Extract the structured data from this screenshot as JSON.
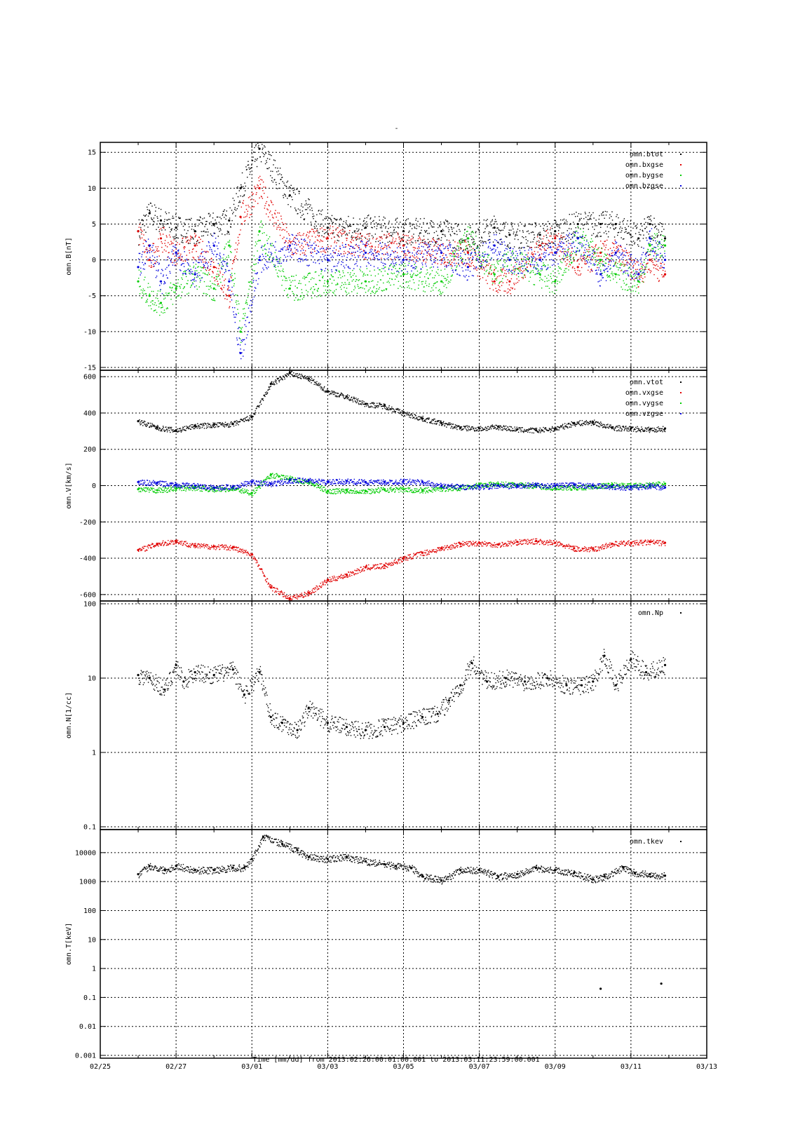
{
  "title": "-",
  "x_axis": {
    "ticks": [
      "02/25",
      "02/27",
      "03/01",
      "03/03",
      "03/05",
      "03/07",
      "03/09",
      "03/11",
      "03/13"
    ],
    "label": "Time [mm/dd]  from 2013:02:26:00:01:00.001  to  2013:03:11:23:59:00.001",
    "start_day": 0,
    "end_day": 16
  },
  "chart_data": [
    {
      "type": "scatter",
      "ylabel": "omn.B[nT]",
      "ylim": [
        -15,
        16
      ],
      "yscale": "linear",
      "yticks": [
        15,
        10,
        5,
        0,
        -5,
        -10,
        -15
      ],
      "grid": true,
      "legend_position": "top-right",
      "series": [
        {
          "name": "omn.btot",
          "color": "#000000",
          "x": [
            1.0,
            1.3,
            1.6,
            2.0,
            2.5,
            3.0,
            3.4,
            3.7,
            4.2,
            5.0,
            6.0,
            7.0,
            8.0,
            9.0,
            9.7,
            10.4,
            10.8,
            11.6,
            12.0,
            12.6,
            13.2,
            13.6,
            14.2,
            14.5,
            14.9
          ],
          "values": [
            4,
            6.5,
            5.5,
            4.5,
            4,
            5,
            5.5,
            10,
            15.5,
            9,
            4.5,
            4.5,
            4,
            4,
            3,
            4.5,
            3.5,
            3.5,
            4,
            5,
            5,
            5,
            3,
            5,
            3
          ]
        },
        {
          "name": "omn.bxgse",
          "color": "#e00000",
          "x": [
            1.0,
            1.3,
            1.6,
            2.0,
            2.5,
            3.0,
            3.4,
            3.7,
            4.2,
            5.0,
            6.0,
            7.0,
            8.0,
            9.0,
            9.7,
            10.4,
            10.8,
            11.6,
            12.0,
            12.6,
            13.2,
            13.6,
            14.2,
            14.5,
            14.9
          ],
          "values": [
            4,
            0,
            3,
            1,
            2,
            -1,
            -5,
            6,
            10,
            2,
            3,
            2,
            2,
            1,
            1,
            -3,
            -3,
            2,
            3,
            -1,
            1,
            1,
            -2,
            0,
            -2
          ]
        },
        {
          "name": "omn.bygse",
          "color": "#00cc00",
          "x": [
            1.0,
            1.3,
            1.6,
            2.0,
            2.5,
            3.0,
            3.4,
            3.7,
            4.2,
            5.0,
            6.0,
            7.0,
            8.0,
            9.0,
            9.7,
            10.4,
            10.8,
            11.6,
            12.0,
            12.6,
            13.2,
            13.6,
            14.2,
            14.5,
            14.9
          ],
          "values": [
            -3,
            -5,
            -6,
            -4,
            -2,
            -4,
            2,
            -10,
            4,
            -4,
            -3,
            -3,
            -2,
            -3,
            3,
            -2,
            0,
            -2,
            -3,
            3,
            0,
            -2,
            -3,
            2,
            2
          ]
        },
        {
          "name": "omn.bzgse",
          "color": "#0000dd",
          "x": [
            1.0,
            1.3,
            1.6,
            2.0,
            2.5,
            3.0,
            3.4,
            3.7,
            4.2,
            5.0,
            6.0,
            7.0,
            8.0,
            9.0,
            9.7,
            10.4,
            10.8,
            11.6,
            12.0,
            12.6,
            13.2,
            13.6,
            14.2,
            14.5,
            14.9
          ],
          "values": [
            -1,
            2,
            -3,
            1,
            -2,
            2,
            -3,
            -13,
            0,
            2,
            0,
            1,
            0,
            1,
            -1,
            2,
            0,
            0,
            1,
            3,
            -2,
            1,
            -2,
            3,
            0
          ]
        }
      ]
    },
    {
      "type": "scatter",
      "ylabel": "omn.V[km/s]",
      "ylim": [
        -620,
        620
      ],
      "yscale": "linear",
      "yticks": [
        600,
        400,
        200,
        0,
        -200,
        -400,
        -600
      ],
      "grid": true,
      "legend_position": "top-right",
      "series": [
        {
          "name": "omn.vtot",
          "color": "#000000",
          "x": [
            1.0,
            1.5,
            2.0,
            2.5,
            3.0,
            3.5,
            4.0,
            4.5,
            5.0,
            5.5,
            6.0,
            6.5,
            7.0,
            7.5,
            8.0,
            8.5,
            9.0,
            9.5,
            10.0,
            10.5,
            11.0,
            11.5,
            12.0,
            12.5,
            13.0,
            13.5,
            14.0,
            14.5,
            14.9
          ],
          "values": [
            355,
            320,
            305,
            330,
            335,
            340,
            380,
            560,
            620,
            590,
            520,
            490,
            450,
            440,
            400,
            370,
            345,
            320,
            315,
            325,
            310,
            305,
            315,
            345,
            350,
            320,
            315,
            310,
            315
          ]
        },
        {
          "name": "omn.vxgse",
          "color": "#e00000",
          "x": [
            1.0,
            1.5,
            2.0,
            2.5,
            3.0,
            3.5,
            4.0,
            4.5,
            5.0,
            5.5,
            6.0,
            6.5,
            7.0,
            7.5,
            8.0,
            8.5,
            9.0,
            9.5,
            10.0,
            10.5,
            11.0,
            11.5,
            12.0,
            12.5,
            13.0,
            13.5,
            14.0,
            14.5,
            14.9
          ],
          "values": [
            -355,
            -320,
            -305,
            -330,
            -335,
            -340,
            -380,
            -560,
            -620,
            -590,
            -520,
            -490,
            -450,
            -440,
            -400,
            -370,
            -345,
            -320,
            -315,
            -325,
            -310,
            -305,
            -315,
            -345,
            -350,
            -320,
            -315,
            -310,
            -315
          ]
        },
        {
          "name": "omn.vygse",
          "color": "#00cc00",
          "x": [
            1.0,
            1.5,
            2.0,
            2.5,
            3.0,
            3.5,
            4.0,
            4.5,
            5.0,
            5.5,
            6.0,
            6.5,
            7.0,
            7.5,
            8.0,
            8.5,
            9.0,
            9.5,
            10.0,
            10.5,
            11.0,
            11.5,
            12.0,
            12.5,
            13.0,
            13.5,
            14.0,
            14.5,
            14.9
          ],
          "values": [
            -20,
            -25,
            -15,
            -10,
            -20,
            -15,
            -40,
            60,
            40,
            20,
            -30,
            -25,
            -30,
            -20,
            -20,
            -25,
            -15,
            -10,
            5,
            10,
            5,
            0,
            -15,
            -10,
            -5,
            5,
            0,
            5,
            10
          ]
        },
        {
          "name": "omn.vzgse",
          "color": "#0000dd",
          "x": [
            1.0,
            1.5,
            2.0,
            2.5,
            3.0,
            3.5,
            4.0,
            4.5,
            5.0,
            5.5,
            6.0,
            6.5,
            7.0,
            7.5,
            8.0,
            8.5,
            9.0,
            9.5,
            10.0,
            10.5,
            11.0,
            11.5,
            12.0,
            12.5,
            13.0,
            13.5,
            14.0,
            14.5,
            14.9
          ],
          "values": [
            20,
            15,
            5,
            0,
            -10,
            -5,
            20,
            10,
            30,
            30,
            20,
            25,
            20,
            20,
            25,
            20,
            0,
            -5,
            -5,
            0,
            0,
            5,
            0,
            5,
            0,
            -5,
            -10,
            0,
            -10
          ]
        }
      ]
    },
    {
      "type": "scatter",
      "ylabel": "omn.N[1/cc]",
      "ylim": [
        0.1,
        100
      ],
      "yscale": "log",
      "yticks": [
        100,
        10,
        1,
        0.1
      ],
      "grid": true,
      "legend_position": "top-right",
      "series": [
        {
          "name": "omn.Np",
          "color": "#000000",
          "x": [
            1.0,
            1.3,
            1.7,
            2.0,
            2.2,
            2.5,
            3.0,
            3.5,
            3.8,
            4.2,
            4.5,
            4.8,
            5.2,
            5.5,
            6.0,
            6.5,
            7.0,
            7.5,
            8.0,
            8.5,
            8.9,
            9.2,
            9.5,
            9.8,
            10.2,
            10.7,
            11.2,
            11.8,
            12.3,
            12.7,
            13.0,
            13.3,
            13.6,
            14.0,
            14.4,
            14.9
          ],
          "values": [
            11,
            10,
            7,
            15,
            9,
            12,
            11,
            13,
            6,
            12,
            3,
            2.5,
            2,
            4,
            2.5,
            2.2,
            2,
            2.2,
            2.5,
            3,
            3.3,
            5,
            8,
            16,
            9,
            10,
            9,
            10,
            8,
            8,
            9,
            20,
            8,
            18,
            12,
            15
          ]
        }
      ]
    },
    {
      "type": "scatter",
      "ylabel": "omn.T[keV]",
      "ylim": [
        0.001,
        50000
      ],
      "yscale": "log",
      "yticks": [
        10000,
        1000,
        100,
        10,
        1,
        0.1,
        0.01,
        0.001
      ],
      "grid": true,
      "legend_position": "top-right",
      "series": [
        {
          "name": "omn.tkev",
          "color": "#000000",
          "x": [
            1.0,
            1.3,
            1.7,
            2.0,
            2.5,
            3.0,
            3.5,
            3.8,
            4.0,
            4.3,
            4.8,
            5.2,
            5.5,
            6.0,
            6.5,
            7.0,
            7.5,
            7.8,
            8.2,
            8.5,
            9.0,
            9.5,
            10.0,
            10.5,
            11.0,
            11.5,
            12.0,
            12.5,
            13.0,
            13.3,
            13.8,
            14.1,
            14.5,
            14.9
          ],
          "values": [
            1800,
            3500,
            2500,
            3500,
            2500,
            2500,
            3000,
            3000,
            6000,
            35000,
            20000,
            12000,
            7000,
            6000,
            7000,
            5000,
            4000,
            3500,
            3000,
            1500,
            1100,
            2500,
            2500,
            1500,
            1800,
            3000,
            2500,
            2000,
            1200,
            1500,
            3000,
            2000,
            1800,
            1600
          ]
        },
        {
          "name": "",
          "color": "#000000",
          "x": [
            13.2,
            14.8
          ],
          "values": [
            0.2,
            0.3
          ]
        }
      ]
    }
  ]
}
